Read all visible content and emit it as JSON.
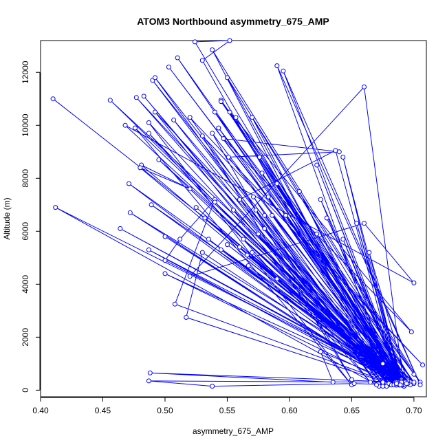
{
  "chart_data": {
    "type": "scatter",
    "title": "ATOM3 Northbound asymmetry_675_AMP",
    "xlabel": "asymmetry_675_AMP",
    "ylabel": "Altitude (m)",
    "xlim": [
      0.4,
      0.71
    ],
    "ylim": [
      -250,
      13200
    ],
    "x_ticks": [
      0.4,
      0.45,
      0.5,
      0.55,
      0.6,
      0.65,
      0.7
    ],
    "x_tick_labels": [
      "0.40",
      "0.45",
      "0.50",
      "0.55",
      "0.60",
      "0.65",
      "0.70"
    ],
    "y_ticks": [
      0,
      2000,
      4000,
      6000,
      8000,
      10000,
      12000
    ],
    "y_tick_labels": [
      "0",
      "2000",
      "4000",
      "6000",
      "8000",
      "10000",
      "12000"
    ],
    "grid": false,
    "connected": true,
    "marker": "open-circle",
    "color": "#0000ff",
    "series": [
      {
        "points": [
          [
            0.41,
            11000
          ],
          [
            0.7,
            300
          ],
          [
            0.456,
            10950
          ],
          [
            0.69,
            250
          ],
          [
            0.477,
            11050
          ],
          [
            0.68,
            200
          ],
          [
            0.483,
            11100
          ],
          [
            0.675,
            300
          ],
          [
            0.49,
            11700
          ],
          [
            0.685,
            200
          ],
          [
            0.492,
            11800
          ],
          [
            0.672,
            150
          ],
          [
            0.412,
            6900
          ],
          [
            0.695,
            250
          ],
          [
            0.503,
            12200
          ],
          [
            0.697,
            200
          ],
          [
            0.51,
            12550
          ],
          [
            0.688,
            300
          ],
          [
            0.524,
            13150
          ],
          [
            0.552,
            13200
          ],
          [
            0.53,
            12450
          ],
          [
            0.678,
            150
          ],
          [
            0.538,
            12850
          ],
          [
            0.705,
            300
          ],
          [
            0.54,
            10500
          ],
          [
            0.69,
            400
          ],
          [
            0.545,
            10950
          ],
          [
            0.7,
            600
          ],
          [
            0.55,
            11800
          ],
          [
            0.685,
            200
          ],
          [
            0.552,
            10500
          ],
          [
            0.692,
            300
          ],
          [
            0.557,
            10300
          ],
          [
            0.7,
            250
          ],
          [
            0.57,
            10300
          ],
          [
            0.682,
            200
          ],
          [
            0.59,
            12250
          ],
          [
            0.705,
            200
          ],
          [
            0.595,
            12050
          ],
          [
            0.692,
            150
          ],
          [
            0.66,
            11450
          ],
          [
            0.52,
            4300
          ],
          [
            0.66,
            6300
          ],
          [
            0.7,
            4050
          ],
          [
            0.468,
            10000
          ],
          [
            0.675,
            1000
          ],
          [
            0.476,
            9900
          ],
          [
            0.65,
            200
          ],
          [
            0.487,
            10100
          ],
          [
            0.68,
            250
          ],
          [
            0.487,
            9700
          ],
          [
            0.665,
            300
          ],
          [
            0.492,
            10500
          ],
          [
            0.695,
            300
          ],
          [
            0.495,
            8700
          ],
          [
            0.687,
            200
          ],
          [
            0.507,
            10200
          ],
          [
            0.675,
            150
          ],
          [
            0.52,
            10300
          ],
          [
            0.707,
            950
          ],
          [
            0.53,
            9600
          ],
          [
            0.65,
            400
          ],
          [
            0.538,
            9700
          ],
          [
            0.69,
            200
          ],
          [
            0.543,
            9900
          ],
          [
            0.7,
            300
          ],
          [
            0.545,
            10900
          ],
          [
            0.698,
            2200
          ],
          [
            0.547,
            9500
          ],
          [
            0.64,
            9000
          ],
          [
            0.551,
            8800
          ],
          [
            0.69,
            250
          ],
          [
            0.576,
            8800
          ],
          [
            0.688,
            200
          ],
          [
            0.578,
            8200
          ],
          [
            0.695,
            400
          ],
          [
            0.59,
            7800
          ],
          [
            0.69,
            300
          ],
          [
            0.622,
            8500
          ],
          [
            0.69,
            250
          ],
          [
            0.643,
            8800
          ],
          [
            0.688,
            200
          ],
          [
            0.637,
            9050
          ],
          [
            0.56,
            7200
          ],
          [
            0.68,
            250
          ],
          [
            0.571,
            7300
          ],
          [
            0.67,
            200
          ],
          [
            0.573,
            6800
          ],
          [
            0.685,
            300
          ],
          [
            0.583,
            7300
          ],
          [
            0.69,
            350
          ],
          [
            0.58,
            6600
          ],
          [
            0.682,
            200
          ],
          [
            0.586,
            6600
          ],
          [
            0.692,
            250
          ],
          [
            0.597,
            6600
          ],
          [
            0.688,
            300
          ],
          [
            0.608,
            7500
          ],
          [
            0.686,
            200
          ],
          [
            0.625,
            7200
          ],
          [
            0.69,
            400
          ],
          [
            0.63,
            6500
          ],
          [
            0.691,
            300
          ],
          [
            0.654,
            6300
          ],
          [
            0.69,
            250
          ],
          [
            0.664,
            5200
          ],
          [
            0.695,
            250
          ],
          [
            0.622,
            5900
          ],
          [
            0.692,
            200
          ],
          [
            0.643,
            5700
          ],
          [
            0.69,
            200
          ],
          [
            0.481,
            8500
          ],
          [
            0.52,
            7600
          ],
          [
            0.48,
            8400
          ],
          [
            0.686,
            300
          ],
          [
            0.489,
            7000
          ],
          [
            0.695,
            350
          ],
          [
            0.471,
            7800
          ],
          [
            0.686,
            200
          ],
          [
            0.472,
            6700
          ],
          [
            0.694,
            300
          ],
          [
            0.464,
            6100
          ],
          [
            0.69,
            350
          ],
          [
            0.487,
            5300
          ],
          [
            0.688,
            200
          ],
          [
            0.5,
            5800
          ],
          [
            0.685,
            200
          ],
          [
            0.508,
            3250
          ],
          [
            0.54,
            7200
          ],
          [
            0.512,
            5700
          ],
          [
            0.5,
            4900
          ],
          [
            0.69,
            300
          ],
          [
            0.5,
            4400
          ],
          [
            0.684,
            200
          ],
          [
            0.517,
            2750
          ],
          [
            0.53,
            5200
          ],
          [
            0.69,
            200
          ],
          [
            0.525,
            6900
          ],
          [
            0.69,
            250
          ],
          [
            0.532,
            6500
          ],
          [
            0.691,
            200
          ],
          [
            0.535,
            5700
          ],
          [
            0.686,
            300
          ],
          [
            0.54,
            7100
          ],
          [
            0.69,
            200
          ],
          [
            0.545,
            5300
          ],
          [
            0.692,
            300
          ],
          [
            0.55,
            5500
          ],
          [
            0.693,
            200
          ],
          [
            0.555,
            6800
          ],
          [
            0.688,
            250
          ],
          [
            0.56,
            5400
          ],
          [
            0.693,
            300
          ],
          [
            0.563,
            5700
          ],
          [
            0.69,
            200
          ],
          [
            0.566,
            5100
          ],
          [
            0.694,
            250
          ],
          [
            0.567,
            4700
          ],
          [
            0.686,
            200
          ],
          [
            0.57,
            5200
          ],
          [
            0.686,
            250
          ],
          [
            0.575,
            5900
          ],
          [
            0.69,
            300
          ],
          [
            0.58,
            6100
          ],
          [
            0.689,
            200
          ],
          [
            0.59,
            4200
          ],
          [
            0.69,
            200
          ],
          [
            0.625,
            1450
          ],
          [
            0.635,
            300
          ],
          [
            0.488,
            650
          ],
          [
            0.69,
            300
          ],
          [
            0.487,
            350
          ],
          [
            0.538,
            150
          ],
          [
            0.652,
            250
          ],
          [
            0.689,
            200
          ]
        ]
      }
    ]
  }
}
